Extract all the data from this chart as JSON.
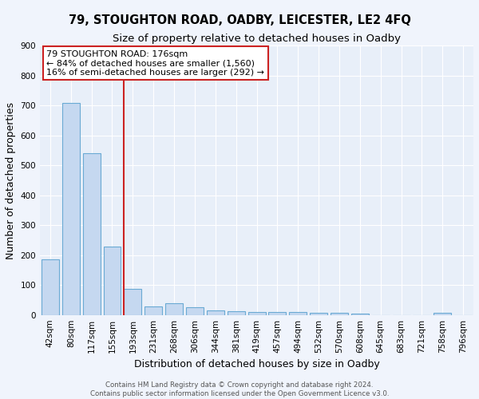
{
  "title1": "79, STOUGHTON ROAD, OADBY, LEICESTER, LE2 4FQ",
  "title2": "Size of property relative to detached houses in Oadby",
  "xlabel": "Distribution of detached houses by size in Oadby",
  "ylabel": "Number of detached properties",
  "categories": [
    "42sqm",
    "80sqm",
    "117sqm",
    "155sqm",
    "193sqm",
    "231sqm",
    "268sqm",
    "306sqm",
    "344sqm",
    "381sqm",
    "419sqm",
    "457sqm",
    "494sqm",
    "532sqm",
    "570sqm",
    "608sqm",
    "645sqm",
    "683sqm",
    "721sqm",
    "758sqm",
    "796sqm"
  ],
  "values": [
    185,
    710,
    542,
    228,
    88,
    28,
    38,
    25,
    15,
    12,
    10,
    10,
    10,
    6,
    6,
    5,
    0,
    0,
    0,
    8,
    0
  ],
  "bar_color": "#c5d8f0",
  "bar_edge_color": "#6aaad4",
  "bar_linewidth": 0.8,
  "vline_x": 3.58,
  "vline_color": "#cc2222",
  "annotation_text": "79 STOUGHTON ROAD: 176sqm\n← 84% of detached houses are smaller (1,560)\n16% of semi-detached houses are larger (292) →",
  "annotation_box_color": "#ffffff",
  "annotation_box_edgecolor": "#cc2222",
  "annotation_fontsize": 8,
  "ylim": [
    0,
    900
  ],
  "yticks": [
    0,
    100,
    200,
    300,
    400,
    500,
    600,
    700,
    800,
    900
  ],
  "bg_color": "#e8eff9",
  "grid_color": "#ffffff",
  "footer1": "Contains HM Land Registry data © Crown copyright and database right 2024.",
  "footer2": "Contains public sector information licensed under the Open Government Licence v3.0.",
  "title_fontsize": 10.5,
  "subtitle_fontsize": 9.5,
  "axis_label_fontsize": 9,
  "tick_fontsize": 7.5,
  "footer_fontsize": 6.2
}
